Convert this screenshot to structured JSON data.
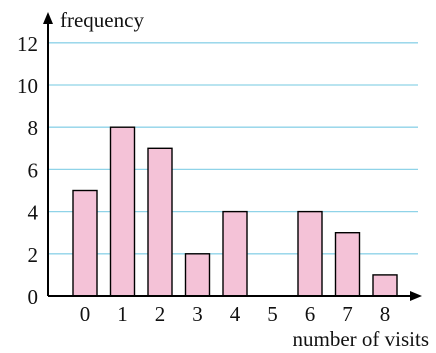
{
  "chart_data": {
    "type": "bar",
    "ylabel": "frequency",
    "xlabel": "number of visits",
    "categories": [
      "0",
      "1",
      "2",
      "3",
      "4",
      "5",
      "6",
      "7",
      "8"
    ],
    "values": [
      5,
      8,
      7,
      2,
      4,
      0,
      4,
      3,
      1
    ],
    "yticks": [
      "0",
      "2",
      "4",
      "6",
      "8",
      "10",
      "12"
    ],
    "ylim": [
      0,
      13
    ],
    "grid": true,
    "colors": {
      "bar_fill": "#f4c2d7",
      "bar_stroke": "#000000",
      "grid": "#8fd3e8",
      "axis": "#000000"
    }
  }
}
